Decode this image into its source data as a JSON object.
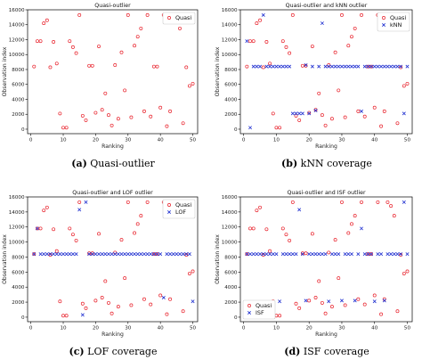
{
  "chart_data": [
    {
      "type": "scatter",
      "title": "Quasi-outlier",
      "xlabel": "Ranking",
      "ylabel": "Observation index",
      "xlim": [
        -1,
        51.5
      ],
      "ylim": [
        -600,
        16000
      ],
      "xticks": [
        0,
        10,
        20,
        30,
        40,
        50
      ],
      "yticks": [
        0,
        2000,
        4000,
        6000,
        8000,
        10000,
        12000,
        14000,
        16000
      ],
      "legend": "top-right",
      "caption": {
        "label": "(a)",
        "text": "Quasi-outlier"
      },
      "series": [
        {
          "name": "Quasi",
          "marker": "circle",
          "color": "#e8202a",
          "x": [
            1,
            2,
            3,
            4,
            5,
            6,
            7,
            8,
            9,
            10,
            11,
            12,
            13,
            14,
            15,
            16,
            17,
            18,
            19,
            20,
            21,
            22,
            23,
            24,
            25,
            26,
            27,
            28,
            29,
            30,
            31,
            32,
            33,
            34,
            35,
            36,
            37,
            38,
            39,
            40,
            41,
            42,
            43,
            44,
            45,
            46,
            47,
            48,
            49,
            50
          ],
          "y": [
            8400,
            11800,
            11800,
            14200,
            14600,
            8300,
            11700,
            8800,
            2100,
            200,
            200,
            11800,
            11000,
            10200,
            15300,
            1800,
            1200,
            8500,
            8500,
            2200,
            11100,
            2600,
            4800,
            1900,
            500,
            8600,
            1400,
            10300,
            5200,
            15300,
            1600,
            11200,
            12400,
            13500,
            2400,
            15300,
            1700,
            8400,
            8400,
            2900,
            15300,
            400,
            2400,
            15300,
            14800,
            13500,
            800,
            8300,
            5800,
            6100
          ]
        }
      ]
    },
    {
      "type": "scatter",
      "title": "Quasi-outlier and kNN outlier",
      "xlabel": "Ranking",
      "ylabel": "Observation index",
      "xlim": [
        -1,
        51.5
      ],
      "ylim": [
        -600,
        16000
      ],
      "xticks": [
        0,
        10,
        20,
        30,
        40,
        50
      ],
      "yticks": [
        0,
        2000,
        4000,
        6000,
        8000,
        10000,
        12000,
        14000,
        16000
      ],
      "legend": "top-right",
      "caption": {
        "label": "(b)",
        "text": "kNN coverage"
      },
      "series": [
        {
          "name": "Quasi",
          "marker": "circle",
          "color": "#e8202a",
          "x": [
            1,
            2,
            3,
            4,
            5,
            6,
            7,
            8,
            9,
            10,
            11,
            12,
            13,
            14,
            15,
            16,
            17,
            18,
            19,
            20,
            21,
            22,
            23,
            24,
            25,
            26,
            27,
            28,
            29,
            30,
            31,
            32,
            33,
            34,
            35,
            36,
            37,
            38,
            39,
            40,
            41,
            42,
            43,
            44,
            45,
            46,
            47,
            48,
            49,
            50
          ],
          "y": [
            8400,
            11800,
            11800,
            14200,
            14600,
            8300,
            11700,
            8800,
            2100,
            200,
            200,
            11800,
            11000,
            10200,
            15300,
            1800,
            1200,
            8500,
            8500,
            2200,
            11100,
            2600,
            4800,
            1900,
            500,
            8600,
            1400,
            10300,
            5200,
            15300,
            1600,
            11200,
            12400,
            13500,
            2400,
            15300,
            1700,
            8400,
            8400,
            2900,
            15300,
            400,
            2400,
            15300,
            14800,
            13500,
            800,
            8300,
            5800,
            6100
          ]
        },
        {
          "name": "kNN",
          "marker": "x",
          "color": "#1f2fd0",
          "x": [
            1,
            2,
            3,
            4,
            5,
            6,
            7,
            8,
            9,
            10,
            11,
            12,
            13,
            14,
            15,
            16,
            17,
            18,
            19,
            20,
            21,
            22,
            23,
            24,
            25,
            26,
            27,
            28,
            29,
            30,
            31,
            32,
            33,
            34,
            35,
            36,
            37,
            38,
            39,
            40,
            41,
            42,
            43,
            44,
            45,
            46,
            47,
            48,
            49,
            50
          ],
          "y": [
            11800,
            200,
            8400,
            8400,
            8400,
            15300,
            8400,
            8400,
            8400,
            8400,
            8400,
            8400,
            8400,
            8400,
            2100,
            2100,
            2100,
            2100,
            8600,
            2100,
            8400,
            2500,
            8400,
            14200,
            8400,
            8400,
            8400,
            8400,
            8400,
            8400,
            8400,
            8400,
            8400,
            8400,
            8400,
            2400,
            8400,
            8400,
            8400,
            8400,
            8400,
            8400,
            8400,
            8400,
            8400,
            8400,
            8400,
            8400,
            2100,
            8400
          ]
        }
      ]
    },
    {
      "type": "scatter",
      "title": "Quasi-outlier and LOF outlier",
      "xlabel": "Ranking",
      "ylabel": "Observation index",
      "xlim": [
        -1,
        51.5
      ],
      "ylim": [
        -600,
        16000
      ],
      "xticks": [
        0,
        10,
        20,
        30,
        40,
        50
      ],
      "yticks": [
        0,
        2000,
        4000,
        6000,
        8000,
        10000,
        12000,
        14000,
        16000
      ],
      "legend": "top-right",
      "caption": {
        "label": "(c)",
        "text": "LOF coverage"
      },
      "series": [
        {
          "name": "Quasi",
          "marker": "circle",
          "color": "#e8202a",
          "x": [
            1,
            2,
            3,
            4,
            5,
            6,
            7,
            8,
            9,
            10,
            11,
            12,
            13,
            14,
            15,
            16,
            17,
            18,
            19,
            20,
            21,
            22,
            23,
            24,
            25,
            26,
            27,
            28,
            29,
            30,
            31,
            32,
            33,
            34,
            35,
            36,
            37,
            38,
            39,
            40,
            41,
            42,
            43,
            44,
            45,
            46,
            47,
            48,
            49,
            50
          ],
          "y": [
            8400,
            11800,
            11800,
            14200,
            14600,
            8300,
            11700,
            8800,
            2100,
            200,
            200,
            11800,
            11000,
            10200,
            15300,
            1800,
            1200,
            8500,
            8500,
            2200,
            11100,
            2600,
            4800,
            1900,
            500,
            8600,
            1400,
            10300,
            5200,
            15300,
            1600,
            11200,
            12400,
            13500,
            2400,
            15300,
            1700,
            8400,
            8400,
            2900,
            15300,
            400,
            2400,
            15300,
            14800,
            13500,
            800,
            8300,
            5800,
            6100
          ]
        },
        {
          "name": "LOF",
          "marker": "x",
          "color": "#1f2fd0",
          "x": [
            1,
            2,
            3,
            4,
            5,
            6,
            7,
            8,
            9,
            10,
            11,
            12,
            13,
            14,
            15,
            16,
            17,
            18,
            19,
            20,
            21,
            22,
            23,
            24,
            25,
            26,
            27,
            28,
            29,
            30,
            31,
            32,
            33,
            34,
            35,
            36,
            37,
            38,
            39,
            40,
            41,
            42,
            43,
            44,
            45,
            46,
            47,
            48,
            49,
            50
          ],
          "y": [
            8400,
            11800,
            8400,
            8400,
            8400,
            8400,
            8400,
            8400,
            8400,
            8400,
            8400,
            8400,
            8400,
            8400,
            14300,
            300,
            15300,
            8400,
            8400,
            8400,
            8400,
            8400,
            8400,
            8400,
            8400,
            8400,
            8400,
            8400,
            8400,
            8400,
            8400,
            8400,
            8400,
            8400,
            8400,
            8400,
            8400,
            8400,
            8400,
            8400,
            2600,
            8400,
            8400,
            8400,
            8400,
            8400,
            8400,
            8400,
            8400,
            2100
          ]
        }
      ]
    },
    {
      "type": "scatter",
      "title": "Quasi-outlier and ISF outlier",
      "xlabel": "Ranking",
      "ylabel": "Observation index",
      "xlim": [
        -1,
        51.5
      ],
      "ylim": [
        -600,
        16000
      ],
      "xticks": [
        0,
        10,
        20,
        30,
        40,
        50
      ],
      "yticks": [
        0,
        2000,
        4000,
        6000,
        8000,
        10000,
        12000,
        14000,
        16000
      ],
      "legend": "bottom-left",
      "caption": {
        "label": "(d)",
        "text": "ISF coverage"
      },
      "series": [
        {
          "name": "Quasi",
          "marker": "circle",
          "color": "#e8202a",
          "x": [
            1,
            2,
            3,
            4,
            5,
            6,
            7,
            8,
            9,
            10,
            11,
            12,
            13,
            14,
            15,
            16,
            17,
            18,
            19,
            20,
            21,
            22,
            23,
            24,
            25,
            26,
            27,
            28,
            29,
            30,
            31,
            32,
            33,
            34,
            35,
            36,
            37,
            38,
            39,
            40,
            41,
            42,
            43,
            44,
            45,
            46,
            47,
            48,
            49,
            50
          ],
          "y": [
            8400,
            11800,
            11800,
            14200,
            14600,
            8300,
            11700,
            8800,
            2100,
            200,
            200,
            11800,
            11000,
            10200,
            15300,
            1800,
            1200,
            8500,
            8500,
            2200,
            11100,
            2600,
            4800,
            1900,
            500,
            8600,
            1400,
            10300,
            5200,
            15300,
            1600,
            11200,
            12400,
            13500,
            2400,
            15300,
            1700,
            8400,
            8400,
            2900,
            15300,
            400,
            2400,
            15300,
            14800,
            13500,
            800,
            8300,
            5800,
            6100
          ]
        },
        {
          "name": "ISF",
          "marker": "x",
          "color": "#1f2fd0",
          "x": [
            1,
            2,
            3,
            4,
            5,
            6,
            7,
            8,
            9,
            10,
            11,
            12,
            13,
            14,
            15,
            16,
            17,
            18,
            19,
            20,
            21,
            22,
            23,
            24,
            25,
            26,
            27,
            28,
            29,
            30,
            31,
            32,
            33,
            34,
            35,
            36,
            37,
            38,
            39,
            40,
            41,
            42,
            43,
            44,
            45,
            46,
            47,
            48,
            49,
            50
          ],
          "y": [
            8400,
            8400,
            8400,
            8400,
            8400,
            8400,
            8400,
            8400,
            8400,
            8400,
            2100,
            8400,
            8400,
            8400,
            8400,
            8400,
            14300,
            8400,
            2200,
            8400,
            8400,
            8400,
            8400,
            8400,
            8400,
            2100,
            8400,
            8400,
            8400,
            2200,
            8400,
            8400,
            8400,
            2200,
            8400,
            11800,
            8400,
            8400,
            8400,
            2100,
            8400,
            8400,
            2200,
            8400,
            8400,
            8400,
            8400,
            8400,
            15300,
            8400
          ]
        }
      ]
    }
  ]
}
